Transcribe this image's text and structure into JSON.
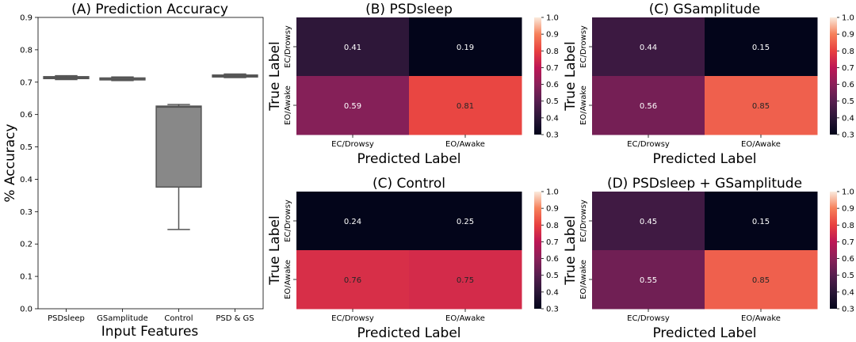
{
  "boxplot": {
    "title": "(A) Prediction Accuracy",
    "ylabel": "% Accuracy",
    "xlabel": "Input Features"
  },
  "colorbar_ticks": [
    "1.0",
    "0.9",
    "0.8",
    "0.7",
    "0.6",
    "0.5",
    "0.4",
    "0.3"
  ],
  "chart_data": [
    {
      "type": "box",
      "title": "(A) Prediction Accuracy",
      "xlabel": "Input Features",
      "ylabel": "% Accuracy",
      "ylim": [
        0,
        0.9
      ],
      "yticks": [
        "0.0",
        "0.1",
        "0.2",
        "0.3",
        "0.4",
        "0.5",
        "0.6",
        "0.7",
        "0.8",
        "0.9"
      ],
      "categories": [
        "PSDsleep",
        "GSamplitude",
        "Control",
        "PSD & GS"
      ],
      "boxes": [
        {
          "min": 0.708,
          "q1": 0.711,
          "median": 0.714,
          "q3": 0.717,
          "max": 0.72
        },
        {
          "min": 0.705,
          "q1": 0.707,
          "median": 0.709,
          "q3": 0.713,
          "max": 0.716
        },
        {
          "min": 0.245,
          "q1": 0.376,
          "median": 0.623,
          "q3": 0.626,
          "max": 0.631
        },
        {
          "min": 0.714,
          "q1": 0.716,
          "median": 0.719,
          "q3": 0.722,
          "max": 0.725
        }
      ],
      "color": "#888888"
    },
    {
      "type": "heatmap",
      "title": "(B) PSDsleep",
      "xlabel": "Predicted Label",
      "ylabel": "True Label",
      "x": [
        "EC/Drowsy",
        "EO/Awake"
      ],
      "y": [
        "EC/Drowsy",
        "EO/Awake"
      ],
      "values": [
        [
          0.41,
          0.19
        ],
        [
          0.59,
          0.81
        ]
      ],
      "labels": [
        [
          "0.41",
          "0.19"
        ],
        [
          "0.59",
          "0.81"
        ]
      ],
      "vmin": 0.3,
      "vmax": 1.0,
      "colormap": "rocket"
    },
    {
      "type": "heatmap",
      "title": "(C) GSamplitude",
      "xlabel": "Predicted Label",
      "ylabel": "True Label",
      "x": [
        "EC/Drowsy",
        "EO/Awake"
      ],
      "y": [
        "EC/Drowsy",
        "EO/Awake"
      ],
      "values": [
        [
          0.44,
          0.15
        ],
        [
          0.56,
          0.85
        ]
      ],
      "labels": [
        [
          "0.44",
          "0.15"
        ],
        [
          "0.56",
          "0.85"
        ]
      ],
      "vmin": 0.3,
      "vmax": 1.0,
      "colormap": "rocket"
    },
    {
      "type": "heatmap",
      "title": "(C) Control",
      "xlabel": "Predicted Label",
      "ylabel": "True Label",
      "x": [
        "EC/Drowsy",
        "EO/Awake"
      ],
      "y": [
        "EC/Drowsy",
        "EO/Awake"
      ],
      "values": [
        [
          0.24,
          0.25
        ],
        [
          0.76,
          0.75
        ]
      ],
      "labels": [
        [
          "0.24",
          "0.25"
        ],
        [
          "0.76",
          "0.75"
        ]
      ],
      "vmin": 0.3,
      "vmax": 1.0,
      "colormap": "rocket"
    },
    {
      "type": "heatmap",
      "title": "(D) PSDsleep + GSamplitude",
      "xlabel": "Predicted Label",
      "ylabel": "True Label",
      "x": [
        "EC/Drowsy",
        "EO/Awake"
      ],
      "y": [
        "EC/Drowsy",
        "EO/Awake"
      ],
      "values": [
        [
          0.45,
          0.15
        ],
        [
          0.55,
          0.85
        ]
      ],
      "labels": [
        [
          "0.45",
          "0.15"
        ],
        [
          "0.55",
          "0.85"
        ]
      ],
      "vmin": 0.3,
      "vmax": 1.0,
      "colormap": "rocket"
    }
  ]
}
